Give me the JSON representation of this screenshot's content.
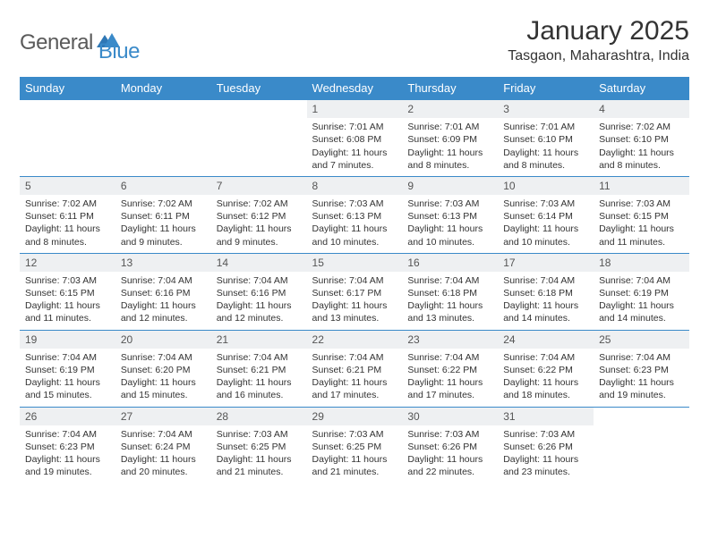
{
  "logo": {
    "text1": "General",
    "text2": "Blue"
  },
  "title": "January 2025",
  "location": "Tasgaon, Maharashtra, India",
  "colors": {
    "header_bg": "#3a8ac9",
    "header_text": "#ffffff",
    "grid_line": "#3a8ac9",
    "daynum_bg": "#eef0f2",
    "body_text": "#333333",
    "logo_gray": "#5a5a5a",
    "logo_blue": "#3a8ac9",
    "page_bg": "#ffffff"
  },
  "typography": {
    "title_fontsize": 30,
    "location_fontsize": 16,
    "weekday_fontsize": 13,
    "daynum_fontsize": 12,
    "cell_fontsize": 10.5
  },
  "weekdays": [
    "Sunday",
    "Monday",
    "Tuesday",
    "Wednesday",
    "Thursday",
    "Friday",
    "Saturday"
  ],
  "calendar": {
    "type": "table",
    "columns": 7,
    "first_weekday_index": 3,
    "days": [
      {
        "n": 1,
        "sunrise": "7:01 AM",
        "sunset": "6:08 PM",
        "daylight": "11 hours and 7 minutes."
      },
      {
        "n": 2,
        "sunrise": "7:01 AM",
        "sunset": "6:09 PM",
        "daylight": "11 hours and 8 minutes."
      },
      {
        "n": 3,
        "sunrise": "7:01 AM",
        "sunset": "6:10 PM",
        "daylight": "11 hours and 8 minutes."
      },
      {
        "n": 4,
        "sunrise": "7:02 AM",
        "sunset": "6:10 PM",
        "daylight": "11 hours and 8 minutes."
      },
      {
        "n": 5,
        "sunrise": "7:02 AM",
        "sunset": "6:11 PM",
        "daylight": "11 hours and 8 minutes."
      },
      {
        "n": 6,
        "sunrise": "7:02 AM",
        "sunset": "6:11 PM",
        "daylight": "11 hours and 9 minutes."
      },
      {
        "n": 7,
        "sunrise": "7:02 AM",
        "sunset": "6:12 PM",
        "daylight": "11 hours and 9 minutes."
      },
      {
        "n": 8,
        "sunrise": "7:03 AM",
        "sunset": "6:13 PM",
        "daylight": "11 hours and 10 minutes."
      },
      {
        "n": 9,
        "sunrise": "7:03 AM",
        "sunset": "6:13 PM",
        "daylight": "11 hours and 10 minutes."
      },
      {
        "n": 10,
        "sunrise": "7:03 AM",
        "sunset": "6:14 PM",
        "daylight": "11 hours and 10 minutes."
      },
      {
        "n": 11,
        "sunrise": "7:03 AM",
        "sunset": "6:15 PM",
        "daylight": "11 hours and 11 minutes."
      },
      {
        "n": 12,
        "sunrise": "7:03 AM",
        "sunset": "6:15 PM",
        "daylight": "11 hours and 11 minutes."
      },
      {
        "n": 13,
        "sunrise": "7:04 AM",
        "sunset": "6:16 PM",
        "daylight": "11 hours and 12 minutes."
      },
      {
        "n": 14,
        "sunrise": "7:04 AM",
        "sunset": "6:16 PM",
        "daylight": "11 hours and 12 minutes."
      },
      {
        "n": 15,
        "sunrise": "7:04 AM",
        "sunset": "6:17 PM",
        "daylight": "11 hours and 13 minutes."
      },
      {
        "n": 16,
        "sunrise": "7:04 AM",
        "sunset": "6:18 PM",
        "daylight": "11 hours and 13 minutes."
      },
      {
        "n": 17,
        "sunrise": "7:04 AM",
        "sunset": "6:18 PM",
        "daylight": "11 hours and 14 minutes."
      },
      {
        "n": 18,
        "sunrise": "7:04 AM",
        "sunset": "6:19 PM",
        "daylight": "11 hours and 14 minutes."
      },
      {
        "n": 19,
        "sunrise": "7:04 AM",
        "sunset": "6:19 PM",
        "daylight": "11 hours and 15 minutes."
      },
      {
        "n": 20,
        "sunrise": "7:04 AM",
        "sunset": "6:20 PM",
        "daylight": "11 hours and 15 minutes."
      },
      {
        "n": 21,
        "sunrise": "7:04 AM",
        "sunset": "6:21 PM",
        "daylight": "11 hours and 16 minutes."
      },
      {
        "n": 22,
        "sunrise": "7:04 AM",
        "sunset": "6:21 PM",
        "daylight": "11 hours and 17 minutes."
      },
      {
        "n": 23,
        "sunrise": "7:04 AM",
        "sunset": "6:22 PM",
        "daylight": "11 hours and 17 minutes."
      },
      {
        "n": 24,
        "sunrise": "7:04 AM",
        "sunset": "6:22 PM",
        "daylight": "11 hours and 18 minutes."
      },
      {
        "n": 25,
        "sunrise": "7:04 AM",
        "sunset": "6:23 PM",
        "daylight": "11 hours and 19 minutes."
      },
      {
        "n": 26,
        "sunrise": "7:04 AM",
        "sunset": "6:23 PM",
        "daylight": "11 hours and 19 minutes."
      },
      {
        "n": 27,
        "sunrise": "7:04 AM",
        "sunset": "6:24 PM",
        "daylight": "11 hours and 20 minutes."
      },
      {
        "n": 28,
        "sunrise": "7:03 AM",
        "sunset": "6:25 PM",
        "daylight": "11 hours and 21 minutes."
      },
      {
        "n": 29,
        "sunrise": "7:03 AM",
        "sunset": "6:25 PM",
        "daylight": "11 hours and 21 minutes."
      },
      {
        "n": 30,
        "sunrise": "7:03 AM",
        "sunset": "6:26 PM",
        "daylight": "11 hours and 22 minutes."
      },
      {
        "n": 31,
        "sunrise": "7:03 AM",
        "sunset": "6:26 PM",
        "daylight": "11 hours and 23 minutes."
      }
    ]
  },
  "labels": {
    "sunrise": "Sunrise:",
    "sunset": "Sunset:",
    "daylight": "Daylight:"
  }
}
